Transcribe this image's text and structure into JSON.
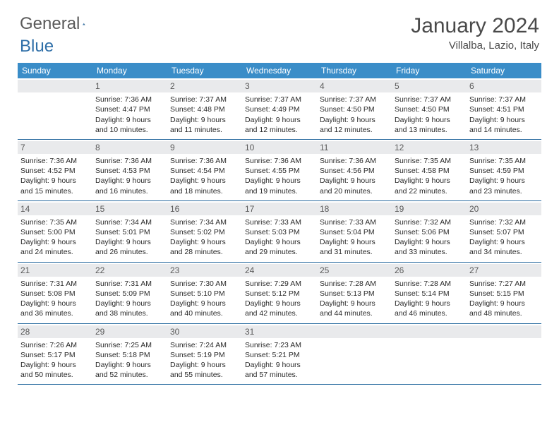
{
  "logo": {
    "text1": "General",
    "text2": "Blue"
  },
  "title": "January 2024",
  "location": "Villalba, Lazio, Italy",
  "colors": {
    "header_bg": "#3a8dc8",
    "daynum_bg": "#e9eaec",
    "border": "#2a6ca0",
    "text": "#2a2a2a",
    "logo_gray": "#5a5a5a",
    "logo_blue": "#2f6fa8"
  },
  "weekdays": [
    "Sunday",
    "Monday",
    "Tuesday",
    "Wednesday",
    "Thursday",
    "Friday",
    "Saturday"
  ],
  "weeks": [
    [
      null,
      {
        "n": "1",
        "sr": "7:36 AM",
        "ss": "4:47 PM",
        "dl": "9 hours and 10 minutes."
      },
      {
        "n": "2",
        "sr": "7:37 AM",
        "ss": "4:48 PM",
        "dl": "9 hours and 11 minutes."
      },
      {
        "n": "3",
        "sr": "7:37 AM",
        "ss": "4:49 PM",
        "dl": "9 hours and 12 minutes."
      },
      {
        "n": "4",
        "sr": "7:37 AM",
        "ss": "4:50 PM",
        "dl": "9 hours and 12 minutes."
      },
      {
        "n": "5",
        "sr": "7:37 AM",
        "ss": "4:50 PM",
        "dl": "9 hours and 13 minutes."
      },
      {
        "n": "6",
        "sr": "7:37 AM",
        "ss": "4:51 PM",
        "dl": "9 hours and 14 minutes."
      }
    ],
    [
      {
        "n": "7",
        "sr": "7:36 AM",
        "ss": "4:52 PM",
        "dl": "9 hours and 15 minutes."
      },
      {
        "n": "8",
        "sr": "7:36 AM",
        "ss": "4:53 PM",
        "dl": "9 hours and 16 minutes."
      },
      {
        "n": "9",
        "sr": "7:36 AM",
        "ss": "4:54 PM",
        "dl": "9 hours and 18 minutes."
      },
      {
        "n": "10",
        "sr": "7:36 AM",
        "ss": "4:55 PM",
        "dl": "9 hours and 19 minutes."
      },
      {
        "n": "11",
        "sr": "7:36 AM",
        "ss": "4:56 PM",
        "dl": "9 hours and 20 minutes."
      },
      {
        "n": "12",
        "sr": "7:35 AM",
        "ss": "4:58 PM",
        "dl": "9 hours and 22 minutes."
      },
      {
        "n": "13",
        "sr": "7:35 AM",
        "ss": "4:59 PM",
        "dl": "9 hours and 23 minutes."
      }
    ],
    [
      {
        "n": "14",
        "sr": "7:35 AM",
        "ss": "5:00 PM",
        "dl": "9 hours and 24 minutes."
      },
      {
        "n": "15",
        "sr": "7:34 AM",
        "ss": "5:01 PM",
        "dl": "9 hours and 26 minutes."
      },
      {
        "n": "16",
        "sr": "7:34 AM",
        "ss": "5:02 PM",
        "dl": "9 hours and 28 minutes."
      },
      {
        "n": "17",
        "sr": "7:33 AM",
        "ss": "5:03 PM",
        "dl": "9 hours and 29 minutes."
      },
      {
        "n": "18",
        "sr": "7:33 AM",
        "ss": "5:04 PM",
        "dl": "9 hours and 31 minutes."
      },
      {
        "n": "19",
        "sr": "7:32 AM",
        "ss": "5:06 PM",
        "dl": "9 hours and 33 minutes."
      },
      {
        "n": "20",
        "sr": "7:32 AM",
        "ss": "5:07 PM",
        "dl": "9 hours and 34 minutes."
      }
    ],
    [
      {
        "n": "21",
        "sr": "7:31 AM",
        "ss": "5:08 PM",
        "dl": "9 hours and 36 minutes."
      },
      {
        "n": "22",
        "sr": "7:31 AM",
        "ss": "5:09 PM",
        "dl": "9 hours and 38 minutes."
      },
      {
        "n": "23",
        "sr": "7:30 AM",
        "ss": "5:10 PM",
        "dl": "9 hours and 40 minutes."
      },
      {
        "n": "24",
        "sr": "7:29 AM",
        "ss": "5:12 PM",
        "dl": "9 hours and 42 minutes."
      },
      {
        "n": "25",
        "sr": "7:28 AM",
        "ss": "5:13 PM",
        "dl": "9 hours and 44 minutes."
      },
      {
        "n": "26",
        "sr": "7:28 AM",
        "ss": "5:14 PM",
        "dl": "9 hours and 46 minutes."
      },
      {
        "n": "27",
        "sr": "7:27 AM",
        "ss": "5:15 PM",
        "dl": "9 hours and 48 minutes."
      }
    ],
    [
      {
        "n": "28",
        "sr": "7:26 AM",
        "ss": "5:17 PM",
        "dl": "9 hours and 50 minutes."
      },
      {
        "n": "29",
        "sr": "7:25 AM",
        "ss": "5:18 PM",
        "dl": "9 hours and 52 minutes."
      },
      {
        "n": "30",
        "sr": "7:24 AM",
        "ss": "5:19 PM",
        "dl": "9 hours and 55 minutes."
      },
      {
        "n": "31",
        "sr": "7:23 AM",
        "ss": "5:21 PM",
        "dl": "9 hours and 57 minutes."
      },
      null,
      null,
      null
    ]
  ],
  "labels": {
    "sunrise": "Sunrise:",
    "sunset": "Sunset:",
    "daylight": "Daylight:"
  }
}
